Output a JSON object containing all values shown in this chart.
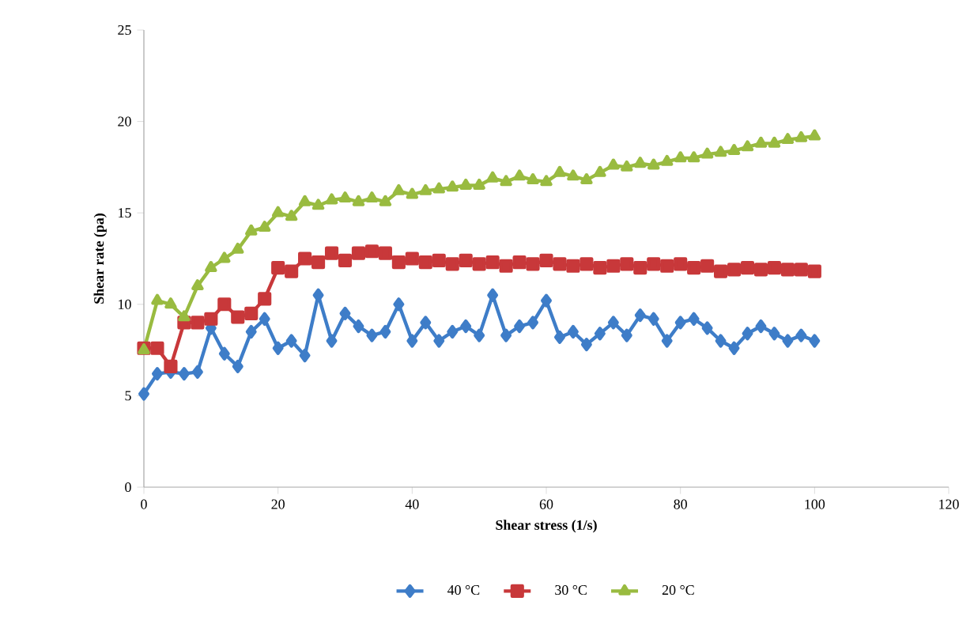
{
  "chart_data": {
    "type": "line",
    "xlabel": "Shear stress (1/s)",
    "ylabel": "Shear rate (pa)",
    "x": [
      0,
      2,
      4,
      6,
      8,
      10,
      12,
      14,
      16,
      18,
      20,
      22,
      24,
      26,
      28,
      30,
      32,
      34,
      36,
      38,
      40,
      42,
      44,
      46,
      48,
      50,
      52,
      54,
      56,
      58,
      60,
      62,
      64,
      66,
      68,
      70,
      72,
      74,
      76,
      78,
      80,
      82,
      84,
      86,
      88,
      90,
      92,
      94,
      96,
      98,
      100
    ],
    "series": [
      {
        "name": "40 °C",
        "color": "#3e7dc8",
        "marker": "diamond",
        "values": [
          5.1,
          6.2,
          6.3,
          6.2,
          6.3,
          8.7,
          7.3,
          6.6,
          8.5,
          9.2,
          7.6,
          8.0,
          7.2,
          10.5,
          8.0,
          9.5,
          8.8,
          8.3,
          8.5,
          10.0,
          8.0,
          9.0,
          8.0,
          8.5,
          8.8,
          8.3,
          10.5,
          8.3,
          8.8,
          9.0,
          10.2,
          8.2,
          8.5,
          7.8,
          8.4,
          9.0,
          8.3,
          9.4,
          9.2,
          8.0,
          9.0,
          9.2,
          8.7,
          8.0,
          7.6,
          8.4,
          8.8,
          8.4,
          8.0,
          8.3,
          8.0
        ]
      },
      {
        "name": "30 °C",
        "color": "#c8383a",
        "marker": "square",
        "values": [
          7.6,
          7.6,
          6.6,
          9.0,
          9.0,
          9.2,
          10.0,
          9.3,
          9.5,
          10.3,
          12.0,
          11.8,
          12.5,
          12.3,
          12.8,
          12.4,
          12.8,
          12.9,
          12.8,
          12.3,
          12.5,
          12.3,
          12.4,
          12.2,
          12.4,
          12.2,
          12.3,
          12.1,
          12.3,
          12.2,
          12.4,
          12.2,
          12.1,
          12.2,
          12.0,
          12.1,
          12.2,
          12.0,
          12.2,
          12.1,
          12.2,
          12.0,
          12.1,
          11.8,
          11.9,
          12.0,
          11.9,
          12.0,
          11.9,
          11.9,
          11.8
        ]
      },
      {
        "name": "20 °C",
        "color": "#99bb40",
        "marker": "triangle",
        "values": [
          7.5,
          10.2,
          10.0,
          9.3,
          11.0,
          12.0,
          12.5,
          13.0,
          14.0,
          14.2,
          15.0,
          14.8,
          15.6,
          15.4,
          15.7,
          15.8,
          15.6,
          15.8,
          15.6,
          16.2,
          16.0,
          16.2,
          16.3,
          16.4,
          16.5,
          16.5,
          16.9,
          16.7,
          17.0,
          16.8,
          16.7,
          17.2,
          17.0,
          16.8,
          17.2,
          17.6,
          17.5,
          17.7,
          17.6,
          17.8,
          18.0,
          18.0,
          18.2,
          18.3,
          18.4,
          18.6,
          18.8,
          18.8,
          19.0,
          19.1,
          19.2
        ]
      }
    ],
    "xlim": [
      0,
      120
    ],
    "xticks": [
      0,
      20,
      40,
      60,
      80,
      100,
      120
    ],
    "ylim": [
      0,
      25
    ],
    "yticks": [
      0,
      5,
      10,
      15,
      20,
      25
    ],
    "grid": false,
    "legend": "bottom",
    "line_style": "solid"
  }
}
